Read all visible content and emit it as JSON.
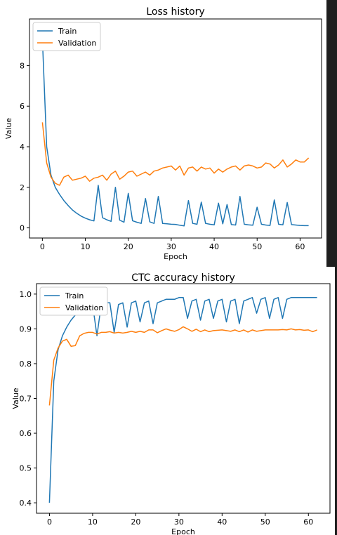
{
  "chart_data": [
    {
      "type": "line",
      "title": "Loss history",
      "xlabel": "Epoch",
      "ylabel": "Value",
      "xlim": [
        -3,
        65
      ],
      "ylim": [
        -0.5,
        10.3
      ],
      "xticks": [
        0,
        10,
        20,
        30,
        40,
        50,
        60
      ],
      "yticks": [
        0,
        2,
        4,
        6,
        8
      ],
      "legend_position": "top-left",
      "grid": false,
      "x": [
        0,
        1,
        2,
        3,
        4,
        5,
        6,
        7,
        8,
        9,
        10,
        11,
        12,
        13,
        14,
        15,
        16,
        17,
        18,
        19,
        20,
        21,
        22,
        23,
        24,
        25,
        26,
        27,
        28,
        29,
        30,
        31,
        32,
        33,
        34,
        35,
        36,
        37,
        38,
        39,
        40,
        41,
        42,
        43,
        44,
        45,
        46,
        47,
        48,
        49,
        50,
        51,
        52,
        53,
        54,
        55,
        56,
        57,
        58,
        59,
        60,
        61,
        62
      ],
      "series": [
        {
          "name": "Train",
          "color": "#1f77b4",
          "values": [
            9.3,
            4.0,
            2.6,
            2.0,
            1.65,
            1.35,
            1.1,
            0.88,
            0.72,
            0.58,
            0.48,
            0.4,
            0.34,
            2.1,
            0.5,
            0.4,
            0.32,
            2.0,
            0.38,
            0.28,
            1.7,
            0.35,
            0.28,
            0.22,
            1.45,
            0.3,
            0.22,
            1.55,
            0.22,
            0.2,
            0.18,
            0.17,
            0.13,
            0.1,
            1.35,
            0.22,
            0.18,
            1.27,
            0.22,
            0.18,
            0.15,
            1.22,
            0.2,
            1.15,
            0.16,
            0.14,
            1.55,
            0.18,
            0.15,
            0.13,
            1.02,
            0.18,
            0.14,
            0.12,
            1.38,
            0.18,
            0.15,
            1.25,
            0.16,
            0.14,
            0.12,
            0.11,
            0.11
          ]
        },
        {
          "name": "Validation",
          "color": "#ff7f0e",
          "values": [
            5.2,
            3.2,
            2.5,
            2.2,
            2.1,
            2.5,
            2.6,
            2.35,
            2.4,
            2.45,
            2.55,
            2.3,
            2.45,
            2.5,
            2.6,
            2.35,
            2.65,
            2.8,
            2.4,
            2.55,
            2.75,
            2.8,
            2.55,
            2.65,
            2.75,
            2.6,
            2.8,
            2.85,
            2.95,
            3.0,
            3.05,
            2.85,
            3.05,
            2.6,
            2.95,
            3.0,
            2.8,
            3.0,
            2.9,
            2.95,
            2.7,
            2.9,
            2.75,
            2.9,
            3.0,
            3.05,
            2.85,
            3.05,
            3.1,
            3.05,
            2.95,
            3.0,
            3.2,
            3.15,
            2.95,
            3.1,
            3.35,
            3.0,
            3.15,
            3.35,
            3.25,
            3.25,
            3.45
          ]
        }
      ]
    },
    {
      "type": "line",
      "title": "CTC accuracy history",
      "xlabel": "Epoch",
      "ylabel": "Value",
      "xlim": [
        -3,
        65
      ],
      "ylim": [
        0.37,
        1.03
      ],
      "xticks": [
        0,
        10,
        20,
        30,
        40,
        50,
        60
      ],
      "yticks": [
        0.4,
        0.5,
        0.6,
        0.7,
        0.8,
        0.9,
        1.0
      ],
      "legend_position": "top-left",
      "grid": false,
      "x": [
        0,
        1,
        2,
        3,
        4,
        5,
        6,
        7,
        8,
        9,
        10,
        11,
        12,
        13,
        14,
        15,
        16,
        17,
        18,
        19,
        20,
        21,
        22,
        23,
        24,
        25,
        26,
        27,
        28,
        29,
        30,
        31,
        32,
        33,
        34,
        35,
        36,
        37,
        38,
        39,
        40,
        41,
        42,
        43,
        44,
        45,
        46,
        47,
        48,
        49,
        50,
        51,
        52,
        53,
        54,
        55,
        56,
        57,
        58,
        59,
        60,
        61,
        62
      ],
      "series": [
        {
          "name": "Train",
          "color": "#1f77b4",
          "values": [
            0.4,
            0.75,
            0.84,
            0.88,
            0.905,
            0.925,
            0.94,
            0.95,
            0.96,
            0.965,
            0.97,
            0.88,
            0.97,
            0.975,
            0.975,
            0.89,
            0.97,
            0.975,
            0.905,
            0.975,
            0.98,
            0.92,
            0.975,
            0.98,
            0.915,
            0.975,
            0.98,
            0.985,
            0.985,
            0.985,
            0.99,
            0.99,
            0.93,
            0.98,
            0.985,
            0.925,
            0.98,
            0.985,
            0.93,
            0.98,
            0.985,
            0.92,
            0.98,
            0.985,
            0.915,
            0.98,
            0.985,
            0.99,
            0.945,
            0.985,
            0.99,
            0.93,
            0.985,
            0.99,
            0.93,
            0.985,
            0.99,
            0.99,
            0.99,
            0.99,
            0.99,
            0.99,
            0.99
          ]
        },
        {
          "name": "Validation",
          "color": "#ff7f0e",
          "values": [
            0.68,
            0.81,
            0.845,
            0.865,
            0.87,
            0.85,
            0.852,
            0.88,
            0.887,
            0.89,
            0.89,
            0.885,
            0.89,
            0.89,
            0.892,
            0.888,
            0.89,
            0.888,
            0.89,
            0.893,
            0.89,
            0.893,
            0.89,
            0.897,
            0.897,
            0.889,
            0.895,
            0.9,
            0.896,
            0.893,
            0.898,
            0.906,
            0.9,
            0.893,
            0.899,
            0.892,
            0.897,
            0.892,
            0.895,
            0.896,
            0.897,
            0.895,
            0.893,
            0.897,
            0.892,
            0.897,
            0.891,
            0.897,
            0.893,
            0.895,
            0.897,
            0.897,
            0.897,
            0.897,
            0.898,
            0.897,
            0.9,
            0.897,
            0.898,
            0.896,
            0.897,
            0.892,
            0.897
          ]
        }
      ]
    }
  ]
}
